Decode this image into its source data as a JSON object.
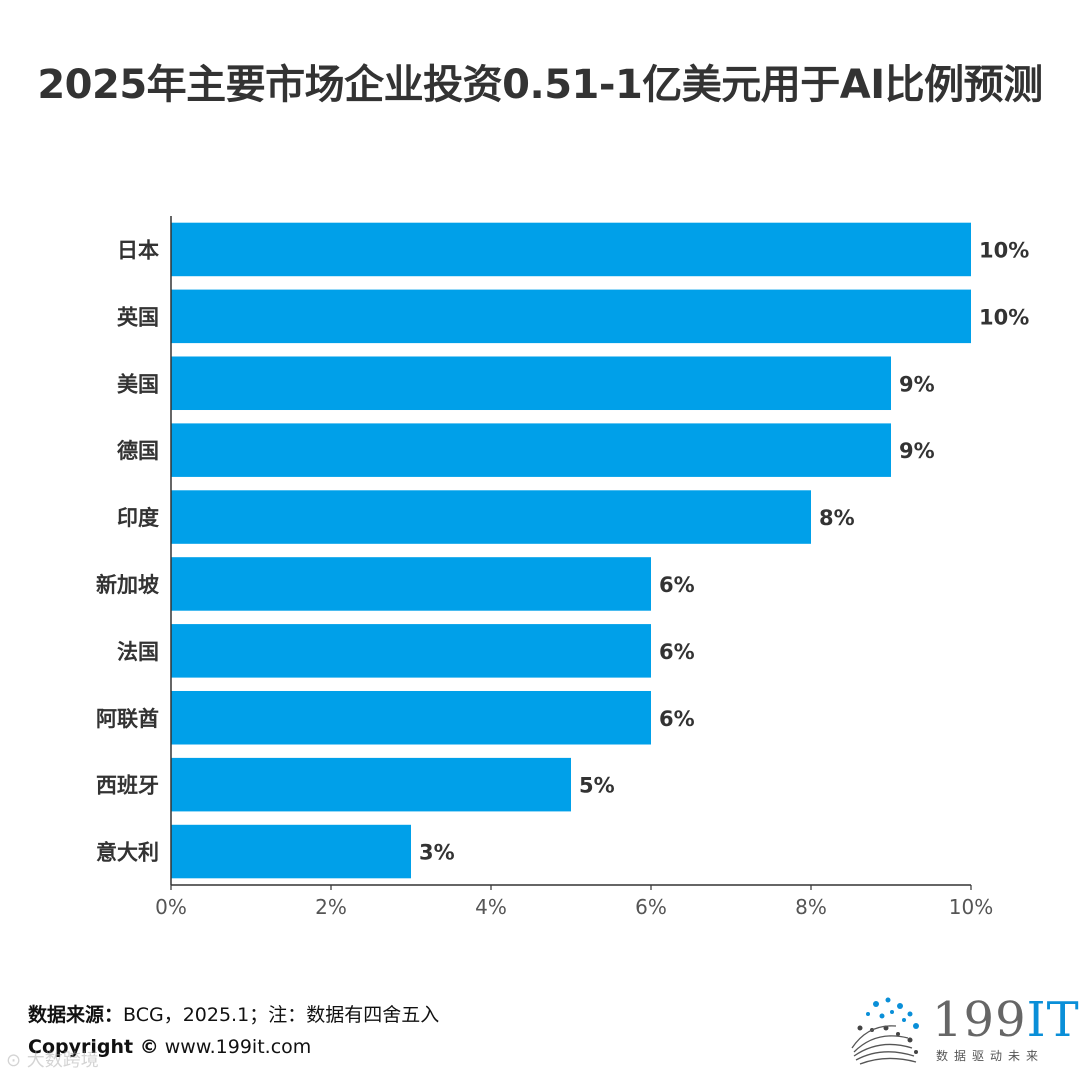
{
  "chart_data": {
    "type": "bar",
    "orientation": "horizontal",
    "title": "2025年主要市场企业投资0.51-1亿美元用于AI比例预测",
    "categories": [
      "日本",
      "英国",
      "美国",
      "德国",
      "印度",
      "新加坡",
      "法国",
      "阿联酋",
      "西班牙",
      "意大利"
    ],
    "values": [
      10,
      10,
      9,
      9,
      8,
      6,
      6,
      6,
      5,
      3
    ],
    "value_labels": [
      "10%",
      "10%",
      "9%",
      "9%",
      "8%",
      "6%",
      "6%",
      "6%",
      "5%",
      "3%"
    ],
    "xlim": [
      0,
      10
    ],
    "xticks": [
      0,
      2,
      4,
      6,
      8,
      10
    ],
    "xtick_labels": [
      "0%",
      "2%",
      "4%",
      "6%",
      "8%",
      "10%"
    ],
    "xlabel": "",
    "ylabel": "",
    "grid": false,
    "bar_color": "#00a0e9"
  },
  "footer": {
    "source_label": "数据来源：",
    "source_text": "BCG，2025.1；注：数据有四舍五入",
    "copyright_label": "Copyright ©",
    "copyright_url": "www.199it.com",
    "watermark": "⊙ 大数跨境"
  },
  "logo": {
    "text_main": "199",
    "text_it": "IT",
    "tagline": "数据驱动未来",
    "accent_color": "#0a8fd8"
  }
}
